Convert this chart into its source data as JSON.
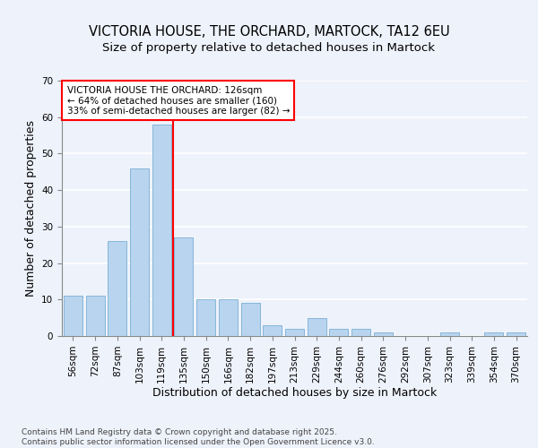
{
  "title_line1": "VICTORIA HOUSE, THE ORCHARD, MARTOCK, TA12 6EU",
  "title_line2": "Size of property relative to detached houses in Martock",
  "xlabel": "Distribution of detached houses by size in Martock",
  "ylabel": "Number of detached properties",
  "categories": [
    "56sqm",
    "72sqm",
    "87sqm",
    "103sqm",
    "119sqm",
    "135sqm",
    "150sqm",
    "166sqm",
    "182sqm",
    "197sqm",
    "213sqm",
    "229sqm",
    "244sqm",
    "260sqm",
    "276sqm",
    "292sqm",
    "307sqm",
    "323sqm",
    "339sqm",
    "354sqm",
    "370sqm"
  ],
  "values": [
    11,
    11,
    26,
    46,
    58,
    27,
    10,
    10,
    9,
    3,
    2,
    5,
    2,
    2,
    1,
    0,
    0,
    1,
    0,
    1,
    1
  ],
  "bar_color": "#b8d4ee",
  "bar_edgecolor": "#7aafd4",
  "reference_line_x": 4.5,
  "reference_line_color": "red",
  "annotation_text": "VICTORIA HOUSE THE ORCHARD: 126sqm\n← 64% of detached houses are smaller (160)\n33% of semi-detached houses are larger (82) →",
  "ylim": [
    0,
    70
  ],
  "yticks": [
    0,
    10,
    20,
    30,
    40,
    50,
    60,
    70
  ],
  "footer_text": "Contains HM Land Registry data © Crown copyright and database right 2025.\nContains public sector information licensed under the Open Government Licence v3.0.",
  "bg_color": "#eef2fb",
  "grid_color": "#ffffff",
  "title_fontsize": 10.5,
  "subtitle_fontsize": 9.5,
  "tick_fontsize": 7.5,
  "label_fontsize": 9,
  "footer_fontsize": 6.5,
  "annot_fontsize": 7.5
}
